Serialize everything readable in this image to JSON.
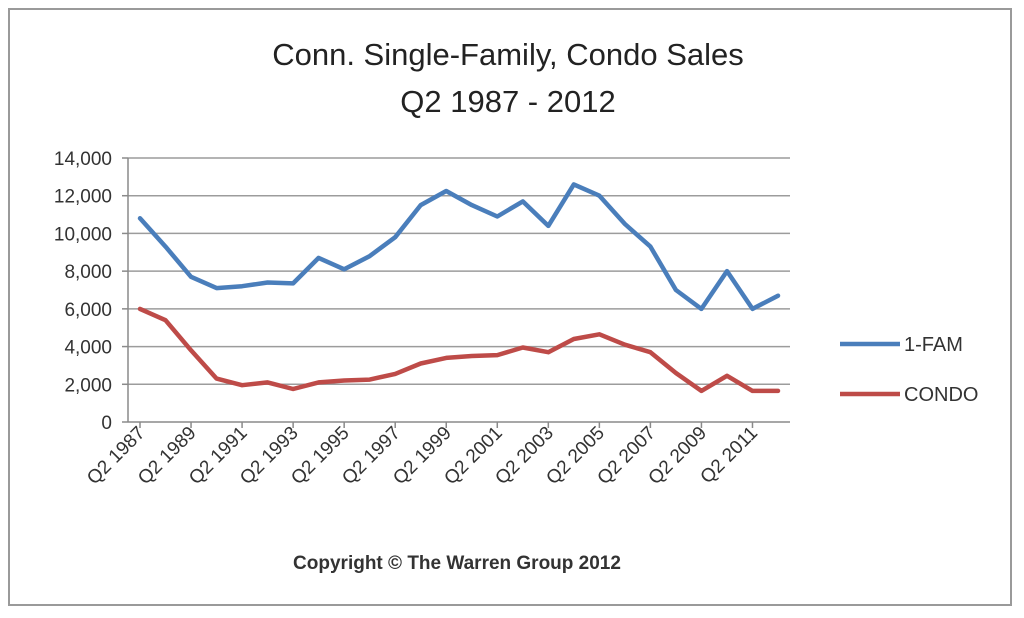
{
  "chart_data": {
    "type": "line",
    "title": "Conn. Single-Family, Condo Sales",
    "subtitle": "Q2 1987 - 2012",
    "footer": "Copyright © The Warren Group 2012",
    "ylim": [
      0,
      14000
    ],
    "y_ticks": [
      "0",
      "2,000",
      "4,000",
      "6,000",
      "8,000",
      "10,000",
      "12,000",
      "14,000"
    ],
    "y_tick_values": [
      0,
      2000,
      4000,
      6000,
      8000,
      10000,
      12000,
      14000
    ],
    "grid": true,
    "legend_position": "right",
    "x": [
      "Q2 1987",
      "Q2 1988",
      "Q2 1989",
      "Q2 1990",
      "Q2 1991",
      "Q2 1992",
      "Q2 1993",
      "Q2 1994",
      "Q2 1995",
      "Q2 1996",
      "Q2 1997",
      "Q2 1998",
      "Q2 1999",
      "Q2 2000",
      "Q2 2001",
      "Q2 2002",
      "Q2 2003",
      "Q2 2004",
      "Q2 2005",
      "Q2 2006",
      "Q2 2007",
      "Q2 2008",
      "Q2 2009",
      "Q2 2010",
      "Q2 2011",
      "Q2 2012"
    ],
    "x_tick_labels": [
      "Q2 1987",
      "Q2 1989",
      "Q2 1991",
      "Q2 1993",
      "Q2 1995",
      "Q2 1997",
      "Q2 1999",
      "Q2 2001",
      "Q2 2003",
      "Q2 2005",
      "Q2 2007",
      "Q2 2009",
      "Q2 2011"
    ],
    "series": [
      {
        "name": "1-FAM",
        "color": "#4a7ebb",
        "values": [
          10800,
          9300,
          7700,
          7100,
          7200,
          7400,
          7350,
          8700,
          8100,
          8800,
          9800,
          11500,
          12250,
          11500,
          10900,
          11700,
          10400,
          12600,
          12000,
          10500,
          9300,
          7000,
          6000,
          8000,
          6000,
          6700
        ]
      },
      {
        "name": "CONDO",
        "color": "#be4b48",
        "values": [
          6000,
          5400,
          3800,
          2300,
          1950,
          2100,
          1750,
          2100,
          2200,
          2250,
          2550,
          3100,
          3400,
          3500,
          3550,
          3950,
          3700,
          4400,
          4650,
          4100,
          3700,
          2600,
          1650,
          2450,
          1650,
          1650
        ]
      }
    ]
  }
}
